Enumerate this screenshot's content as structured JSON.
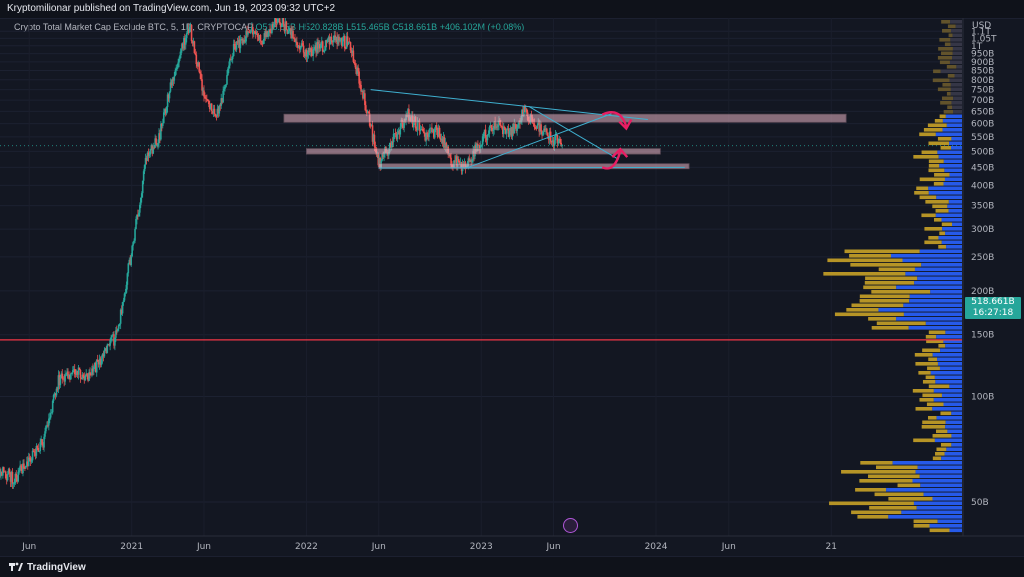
{
  "header": {
    "published": "Kryptomilionar published on TradingView.com, Jun 19, 2023 09:32 UTC+2"
  },
  "legend": {
    "symbol": "Crypto Total Market Cap Exclude BTC, 5, 1D, CRYPTOCAP",
    "open": "O518.55B",
    "high": "H520.828B",
    "low": "L515.465B",
    "close": "C518.661B",
    "change": "+406.102M (+0.08%)"
  },
  "price_axis": {
    "currency": "USD",
    "last_price": "518.661B",
    "countdown": "16:27:18"
  },
  "footer": {
    "brand": "TradingView"
  },
  "colors": {
    "background": "#131722",
    "up": "#26a69a",
    "down": "#ef5350",
    "zone": "#e8b4c4",
    "trendline": "#3fb0d0",
    "arrow": "#e91e63",
    "horizontal_line": "#f23645",
    "vp_up": "#2962ff",
    "vp_down": "#c9a227"
  },
  "chart_data": {
    "type": "candlestick",
    "title": "Crypto Total Market Cap Exclude BTC, 5, 1D, CRYPTOCAP",
    "xlabel": "",
    "ylabel": "",
    "y_scale": "log",
    "ylim": [
      40,
      1200
    ],
    "xlim": [
      "2020-04-01",
      "2025-10-01"
    ],
    "x_tick_labels": [
      "Jun",
      "2021",
      "Jun",
      "2022",
      "Jun",
      "2023",
      "Jun",
      "2024",
      "Jun",
      "21"
    ],
    "x_tick_dates": [
      "2020-06-01",
      "2021-01-01",
      "2021-06-01",
      "2022-01-01",
      "2022-06-01",
      "2023-01-01",
      "2023-06-01",
      "2024-01-01",
      "2024-06-01",
      "2025-01-01"
    ],
    "y_tick_labels": [
      "1.1T",
      "1.05T",
      "1T",
      "950B",
      "900B",
      "850B",
      "800B",
      "750B",
      "700B",
      "650B",
      "600B",
      "550B",
      "500B",
      "450B",
      "400B",
      "350B",
      "300B",
      "250B",
      "200B",
      "150B",
      "100B",
      "50B"
    ],
    "price_path": [
      {
        "date": "2020-04-01",
        "value": 62
      },
      {
        "date": "2020-05-01",
        "value": 58
      },
      {
        "date": "2020-06-01",
        "value": 66
      },
      {
        "date": "2020-07-01",
        "value": 74
      },
      {
        "date": "2020-08-01",
        "value": 112
      },
      {
        "date": "2020-09-01",
        "value": 118
      },
      {
        "date": "2020-10-01",
        "value": 112
      },
      {
        "date": "2020-11-01",
        "value": 130
      },
      {
        "date": "2020-12-01",
        "value": 150
      },
      {
        "date": "2021-01-01",
        "value": 260
      },
      {
        "date": "2021-02-01",
        "value": 480
      },
      {
        "date": "2021-03-01",
        "value": 560
      },
      {
        "date": "2021-04-01",
        "value": 860
      },
      {
        "date": "2021-05-01",
        "value": 1150
      },
      {
        "date": "2021-06-01",
        "value": 720
      },
      {
        "date": "2021-07-01",
        "value": 640
      },
      {
        "date": "2021-08-01",
        "value": 980
      },
      {
        "date": "2021-09-01",
        "value": 1100
      },
      {
        "date": "2021-10-01",
        "value": 1050
      },
      {
        "date": "2021-11-01",
        "value": 1200
      },
      {
        "date": "2021-12-01",
        "value": 1080
      },
      {
        "date": "2022-01-01",
        "value": 940
      },
      {
        "date": "2022-02-01",
        "value": 1000
      },
      {
        "date": "2022-03-01",
        "value": 1050
      },
      {
        "date": "2022-04-01",
        "value": 1010
      },
      {
        "date": "2022-05-01",
        "value": 720
      },
      {
        "date": "2022-06-01",
        "value": 460
      },
      {
        "date": "2022-07-01",
        "value": 540
      },
      {
        "date": "2022-08-01",
        "value": 640
      },
      {
        "date": "2022-09-01",
        "value": 560
      },
      {
        "date": "2022-10-01",
        "value": 570
      },
      {
        "date": "2022-11-01",
        "value": 470
      },
      {
        "date": "2022-12-01",
        "value": 450
      },
      {
        "date": "2023-01-01",
        "value": 540
      },
      {
        "date": "2023-02-01",
        "value": 600
      },
      {
        "date": "2023-03-01",
        "value": 560
      },
      {
        "date": "2023-04-01",
        "value": 650
      },
      {
        "date": "2023-05-01",
        "value": 580
      },
      {
        "date": "2023-06-19",
        "value": 518.661
      }
    ],
    "zones": [
      {
        "from": "2021-11-15",
        "to": "2025-02-01",
        "low": 605,
        "high": 638
      },
      {
        "from": "2022-01-01",
        "to": "2024-01-10",
        "low": 491,
        "high": 509
      },
      {
        "from": "2022-06-01",
        "to": "2024-03-10",
        "low": 446,
        "high": 461
      }
    ],
    "trendlines": [
      {
        "from": {
          "date": "2022-05-15",
          "value": 750
        },
        "to": {
          "date": "2023-12-15",
          "value": 616
        }
      },
      {
        "from": {
          "date": "2022-06-01",
          "value": 448
        },
        "to": {
          "date": "2024-03-01",
          "value": 450
        }
      },
      {
        "from": {
          "date": "2022-12-01",
          "value": 448
        },
        "to": {
          "date": "2023-09-30",
          "value": 640
        }
      },
      {
        "from": {
          "date": "2023-04-10",
          "value": 672
        },
        "to": {
          "date": "2023-10-15",
          "value": 474
        }
      }
    ],
    "horizontal_line": {
      "value": 145
    },
    "arrows": [
      {
        "date": "2023-10-10",
        "direction": "down",
        "value": 612
      },
      {
        "date": "2023-10-10",
        "direction": "up",
        "value": 475
      }
    ]
  }
}
